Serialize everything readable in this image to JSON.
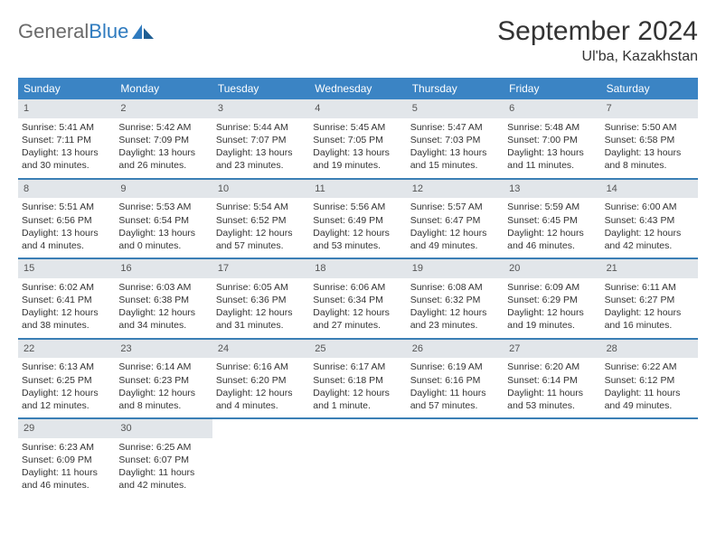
{
  "logo": {
    "text1": "General",
    "text2": "Blue"
  },
  "header": {
    "month_title": "September 2024",
    "location": "Ul'ba, Kazakhstan"
  },
  "colors": {
    "header_bg": "#3b84c4",
    "row_border": "#3b7fb5",
    "daynum_bg": "#e2e6ea",
    "text": "#333333",
    "logo_gray": "#6a6a6a",
    "logo_blue": "#2f7bbf"
  },
  "weekdays": [
    "Sunday",
    "Monday",
    "Tuesday",
    "Wednesday",
    "Thursday",
    "Friday",
    "Saturday"
  ],
  "weeks": [
    [
      {
        "n": "1",
        "sr": "Sunrise: 5:41 AM",
        "ss": "Sunset: 7:11 PM",
        "d1": "Daylight: 13 hours",
        "d2": "and 30 minutes."
      },
      {
        "n": "2",
        "sr": "Sunrise: 5:42 AM",
        "ss": "Sunset: 7:09 PM",
        "d1": "Daylight: 13 hours",
        "d2": "and 26 minutes."
      },
      {
        "n": "3",
        "sr": "Sunrise: 5:44 AM",
        "ss": "Sunset: 7:07 PM",
        "d1": "Daylight: 13 hours",
        "d2": "and 23 minutes."
      },
      {
        "n": "4",
        "sr": "Sunrise: 5:45 AM",
        "ss": "Sunset: 7:05 PM",
        "d1": "Daylight: 13 hours",
        "d2": "and 19 minutes."
      },
      {
        "n": "5",
        "sr": "Sunrise: 5:47 AM",
        "ss": "Sunset: 7:03 PM",
        "d1": "Daylight: 13 hours",
        "d2": "and 15 minutes."
      },
      {
        "n": "6",
        "sr": "Sunrise: 5:48 AM",
        "ss": "Sunset: 7:00 PM",
        "d1": "Daylight: 13 hours",
        "d2": "and 11 minutes."
      },
      {
        "n": "7",
        "sr": "Sunrise: 5:50 AM",
        "ss": "Sunset: 6:58 PM",
        "d1": "Daylight: 13 hours",
        "d2": "and 8 minutes."
      }
    ],
    [
      {
        "n": "8",
        "sr": "Sunrise: 5:51 AM",
        "ss": "Sunset: 6:56 PM",
        "d1": "Daylight: 13 hours",
        "d2": "and 4 minutes."
      },
      {
        "n": "9",
        "sr": "Sunrise: 5:53 AM",
        "ss": "Sunset: 6:54 PM",
        "d1": "Daylight: 13 hours",
        "d2": "and 0 minutes."
      },
      {
        "n": "10",
        "sr": "Sunrise: 5:54 AM",
        "ss": "Sunset: 6:52 PM",
        "d1": "Daylight: 12 hours",
        "d2": "and 57 minutes."
      },
      {
        "n": "11",
        "sr": "Sunrise: 5:56 AM",
        "ss": "Sunset: 6:49 PM",
        "d1": "Daylight: 12 hours",
        "d2": "and 53 minutes."
      },
      {
        "n": "12",
        "sr": "Sunrise: 5:57 AM",
        "ss": "Sunset: 6:47 PM",
        "d1": "Daylight: 12 hours",
        "d2": "and 49 minutes."
      },
      {
        "n": "13",
        "sr": "Sunrise: 5:59 AM",
        "ss": "Sunset: 6:45 PM",
        "d1": "Daylight: 12 hours",
        "d2": "and 46 minutes."
      },
      {
        "n": "14",
        "sr": "Sunrise: 6:00 AM",
        "ss": "Sunset: 6:43 PM",
        "d1": "Daylight: 12 hours",
        "d2": "and 42 minutes."
      }
    ],
    [
      {
        "n": "15",
        "sr": "Sunrise: 6:02 AM",
        "ss": "Sunset: 6:41 PM",
        "d1": "Daylight: 12 hours",
        "d2": "and 38 minutes."
      },
      {
        "n": "16",
        "sr": "Sunrise: 6:03 AM",
        "ss": "Sunset: 6:38 PM",
        "d1": "Daylight: 12 hours",
        "d2": "and 34 minutes."
      },
      {
        "n": "17",
        "sr": "Sunrise: 6:05 AM",
        "ss": "Sunset: 6:36 PM",
        "d1": "Daylight: 12 hours",
        "d2": "and 31 minutes."
      },
      {
        "n": "18",
        "sr": "Sunrise: 6:06 AM",
        "ss": "Sunset: 6:34 PM",
        "d1": "Daylight: 12 hours",
        "d2": "and 27 minutes."
      },
      {
        "n": "19",
        "sr": "Sunrise: 6:08 AM",
        "ss": "Sunset: 6:32 PM",
        "d1": "Daylight: 12 hours",
        "d2": "and 23 minutes."
      },
      {
        "n": "20",
        "sr": "Sunrise: 6:09 AM",
        "ss": "Sunset: 6:29 PM",
        "d1": "Daylight: 12 hours",
        "d2": "and 19 minutes."
      },
      {
        "n": "21",
        "sr": "Sunrise: 6:11 AM",
        "ss": "Sunset: 6:27 PM",
        "d1": "Daylight: 12 hours",
        "d2": "and 16 minutes."
      }
    ],
    [
      {
        "n": "22",
        "sr": "Sunrise: 6:13 AM",
        "ss": "Sunset: 6:25 PM",
        "d1": "Daylight: 12 hours",
        "d2": "and 12 minutes."
      },
      {
        "n": "23",
        "sr": "Sunrise: 6:14 AM",
        "ss": "Sunset: 6:23 PM",
        "d1": "Daylight: 12 hours",
        "d2": "and 8 minutes."
      },
      {
        "n": "24",
        "sr": "Sunrise: 6:16 AM",
        "ss": "Sunset: 6:20 PM",
        "d1": "Daylight: 12 hours",
        "d2": "and 4 minutes."
      },
      {
        "n": "25",
        "sr": "Sunrise: 6:17 AM",
        "ss": "Sunset: 6:18 PM",
        "d1": "Daylight: 12 hours",
        "d2": "and 1 minute."
      },
      {
        "n": "26",
        "sr": "Sunrise: 6:19 AM",
        "ss": "Sunset: 6:16 PM",
        "d1": "Daylight: 11 hours",
        "d2": "and 57 minutes."
      },
      {
        "n": "27",
        "sr": "Sunrise: 6:20 AM",
        "ss": "Sunset: 6:14 PM",
        "d1": "Daylight: 11 hours",
        "d2": "and 53 minutes."
      },
      {
        "n": "28",
        "sr": "Sunrise: 6:22 AM",
        "ss": "Sunset: 6:12 PM",
        "d1": "Daylight: 11 hours",
        "d2": "and 49 minutes."
      }
    ],
    [
      {
        "n": "29",
        "sr": "Sunrise: 6:23 AM",
        "ss": "Sunset: 6:09 PM",
        "d1": "Daylight: 11 hours",
        "d2": "and 46 minutes."
      },
      {
        "n": "30",
        "sr": "Sunrise: 6:25 AM",
        "ss": "Sunset: 6:07 PM",
        "d1": "Daylight: 11 hours",
        "d2": "and 42 minutes."
      },
      null,
      null,
      null,
      null,
      null
    ]
  ]
}
